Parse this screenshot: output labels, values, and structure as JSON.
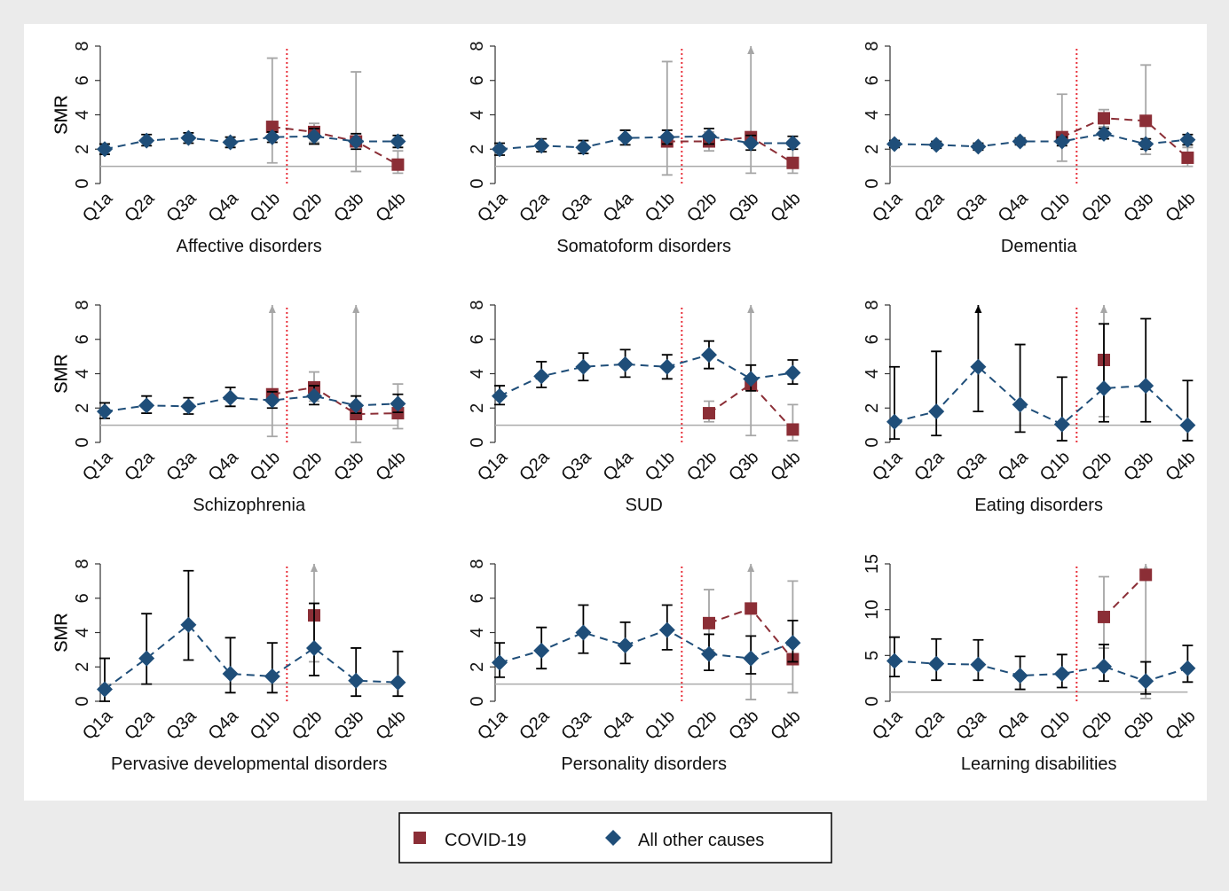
{
  "chart_data": [
    {
      "type": "line",
      "title": "Affective disorders",
      "ylabel": "SMR",
      "categories": [
        "Q1a",
        "Q2a",
        "Q3a",
        "Q4a",
        "Q1b",
        "Q2b",
        "Q3b",
        "Q4b"
      ],
      "ylim": [
        0,
        8
      ],
      "yticks": [
        0,
        2,
        4,
        6,
        8
      ],
      "reference_line": 1,
      "series": [
        {
          "name": "COVID-19",
          "color": "#8b2e36",
          "marker": "square",
          "error_color": "#a6a6a6",
          "values": [
            null,
            null,
            null,
            null,
            3.3,
            3.0,
            2.45,
            1.1
          ],
          "lower": [
            null,
            null,
            null,
            null,
            1.2,
            2.4,
            0.7,
            0.6
          ],
          "upper": [
            null,
            null,
            null,
            null,
            7.3,
            3.5,
            6.5,
            1.9
          ]
        },
        {
          "name": "All other causes",
          "color": "#1f4e79",
          "marker": "diamond",
          "error_color": "#000000",
          "values": [
            2.0,
            2.5,
            2.65,
            2.4,
            2.7,
            2.75,
            2.45,
            2.45
          ],
          "lower": [
            1.7,
            2.2,
            2.35,
            2.1,
            2.4,
            2.3,
            2.0,
            2.1
          ],
          "upper": [
            2.3,
            2.85,
            2.95,
            2.7,
            3.0,
            3.2,
            2.9,
            2.8
          ]
        }
      ]
    },
    {
      "type": "line",
      "title": "Somatoform disorders",
      "ylabel": "SMR",
      "categories": [
        "Q1a",
        "Q2a",
        "Q3a",
        "Q4a",
        "Q1b",
        "Q2b",
        "Q3b",
        "Q4b"
      ],
      "ylim": [
        0,
        8
      ],
      "yticks": [
        0,
        2,
        4,
        6,
        8
      ],
      "reference_line": 1,
      "series": [
        {
          "name": "COVID-19",
          "color": "#8b2e36",
          "marker": "square",
          "error_color": "#a6a6a6",
          "values": [
            null,
            null,
            null,
            null,
            2.45,
            2.45,
            2.7,
            1.2
          ],
          "lower": [
            null,
            null,
            null,
            null,
            0.5,
            1.9,
            0.6,
            0.6
          ],
          "upper": [
            null,
            null,
            null,
            null,
            7.1,
            3.0,
            null,
            2.0
          ]
        },
        {
          "name": "All other causes",
          "color": "#1f4e79",
          "marker": "diamond",
          "error_color": "#000000",
          "values": [
            2.0,
            2.2,
            2.1,
            2.65,
            2.7,
            2.75,
            2.35,
            2.35
          ],
          "lower": [
            1.65,
            1.85,
            1.75,
            2.25,
            2.3,
            2.3,
            1.95,
            2.0
          ],
          "upper": [
            2.35,
            2.6,
            2.5,
            3.1,
            3.1,
            3.2,
            2.8,
            2.75
          ]
        }
      ]
    },
    {
      "type": "line",
      "title": "Dementia",
      "ylabel": "SMR",
      "categories": [
        "Q1a",
        "Q2a",
        "Q3a",
        "Q4a",
        "Q1b",
        "Q2b",
        "Q3b",
        "Q4b"
      ],
      "ylim": [
        0,
        8
      ],
      "yticks": [
        0,
        2,
        4,
        6,
        8
      ],
      "reference_line": 1,
      "series": [
        {
          "name": "COVID-19",
          "color": "#8b2e36",
          "marker": "square",
          "error_color": "#a6a6a6",
          "values": [
            null,
            null,
            null,
            null,
            2.7,
            3.8,
            3.65,
            1.5
          ],
          "lower": [
            null,
            null,
            null,
            null,
            1.3,
            3.3,
            1.7,
            1.0
          ],
          "upper": [
            null,
            null,
            null,
            null,
            5.2,
            4.3,
            6.9,
            2.1
          ]
        },
        {
          "name": "All other causes",
          "color": "#1f4e79",
          "marker": "diamond",
          "error_color": "#000000",
          "values": [
            2.3,
            2.25,
            2.15,
            2.45,
            2.45,
            2.9,
            2.3,
            2.55
          ],
          "lower": [
            2.1,
            2.05,
            1.95,
            2.25,
            2.2,
            2.6,
            2.0,
            2.25
          ],
          "upper": [
            2.5,
            2.45,
            2.35,
            2.65,
            2.7,
            3.2,
            2.6,
            2.85
          ]
        }
      ]
    },
    {
      "type": "line",
      "title": "Schizophrenia",
      "ylabel": "SMR",
      "categories": [
        "Q1a",
        "Q2a",
        "Q3a",
        "Q4a",
        "Q1b",
        "Q2b",
        "Q3b",
        "Q4b"
      ],
      "ylim": [
        0,
        8
      ],
      "yticks": [
        0,
        2,
        4,
        6,
        8
      ],
      "reference_line": 1,
      "series": [
        {
          "name": "COVID-19",
          "color": "#8b2e36",
          "marker": "square",
          "error_color": "#a6a6a6",
          "values": [
            null,
            null,
            null,
            null,
            2.8,
            3.2,
            1.65,
            1.7
          ],
          "lower": [
            null,
            null,
            null,
            null,
            0.35,
            2.4,
            0.0,
            0.8
          ],
          "upper": [
            null,
            null,
            null,
            null,
            null,
            4.1,
            null,
            3.4
          ]
        },
        {
          "name": "All other causes",
          "color": "#1f4e79",
          "marker": "diamond",
          "error_color": "#000000",
          "values": [
            1.8,
            2.15,
            2.1,
            2.6,
            2.45,
            2.7,
            2.15,
            2.25
          ],
          "lower": [
            1.4,
            1.7,
            1.65,
            2.1,
            2.0,
            2.2,
            1.7,
            1.75
          ],
          "upper": [
            2.3,
            2.7,
            2.6,
            3.2,
            2.95,
            3.3,
            2.7,
            2.8
          ]
        }
      ]
    },
    {
      "type": "line",
      "title": "SUD",
      "ylabel": "SMR",
      "categories": [
        "Q1a",
        "Q2a",
        "Q3a",
        "Q4a",
        "Q1b",
        "Q2b",
        "Q3b",
        "Q4b"
      ],
      "ylim": [
        0,
        8
      ],
      "yticks": [
        0,
        2,
        4,
        6,
        8
      ],
      "reference_line": 1,
      "series": [
        {
          "name": "COVID-19",
          "color": "#8b2e36",
          "marker": "square",
          "error_color": "#a6a6a6",
          "values": [
            null,
            null,
            null,
            null,
            null,
            1.7,
            3.4,
            0.75
          ],
          "lower": [
            null,
            null,
            null,
            null,
            null,
            1.2,
            0.4,
            0.1
          ],
          "upper": [
            null,
            null,
            null,
            null,
            null,
            2.4,
            null,
            2.2
          ]
        },
        {
          "name": "All other causes",
          "color": "#1f4e79",
          "marker": "diamond",
          "error_color": "#000000",
          "values": [
            2.7,
            3.85,
            4.4,
            4.55,
            4.4,
            5.1,
            3.7,
            4.05
          ],
          "lower": [
            2.2,
            3.2,
            3.6,
            3.8,
            3.7,
            4.3,
            3.0,
            3.4
          ],
          "upper": [
            3.3,
            4.7,
            5.2,
            5.4,
            5.1,
            5.9,
            4.5,
            4.8
          ]
        }
      ]
    },
    {
      "type": "line",
      "title": "Eating disorders",
      "ylabel": "SMR",
      "categories": [
        "Q1a",
        "Q2a",
        "Q3a",
        "Q4a",
        "Q1b",
        "Q2b",
        "Q3b",
        "Q4b"
      ],
      "ylim": [
        0,
        8
      ],
      "yticks": [
        0,
        2,
        4,
        6,
        8
      ],
      "reference_line": 1,
      "series": [
        {
          "name": "COVID-19",
          "color": "#8b2e36",
          "marker": "square",
          "error_color": "#a6a6a6",
          "values": [
            null,
            null,
            null,
            null,
            null,
            4.8,
            null,
            null
          ],
          "lower": [
            null,
            null,
            null,
            null,
            null,
            1.5,
            null,
            null
          ],
          "upper": [
            null,
            null,
            null,
            null,
            null,
            null,
            null,
            null
          ]
        },
        {
          "name": "All other causes",
          "color": "#1f4e79",
          "marker": "diamond",
          "error_color": "#000000",
          "values": [
            1.2,
            1.8,
            4.4,
            2.2,
            1.05,
            3.15,
            3.3,
            1.0
          ],
          "lower": [
            0.2,
            0.4,
            1.8,
            0.6,
            0.1,
            1.2,
            1.2,
            0.1
          ],
          "upper": [
            4.4,
            5.3,
            null,
            5.7,
            3.8,
            6.9,
            7.2,
            3.6
          ]
        }
      ]
    },
    {
      "type": "line",
      "title": "Pervasive developmental disorders",
      "ylabel": "SMR",
      "categories": [
        "Q1a",
        "Q2a",
        "Q3a",
        "Q4a",
        "Q1b",
        "Q2b",
        "Q3b",
        "Q4b"
      ],
      "ylim": [
        0,
        8
      ],
      "yticks": [
        0,
        2,
        4,
        6,
        8
      ],
      "reference_line": 1,
      "series": [
        {
          "name": "COVID-19",
          "color": "#8b2e36",
          "marker": "square",
          "error_color": "#a6a6a6",
          "values": [
            null,
            null,
            null,
            null,
            null,
            5.0,
            null,
            null
          ],
          "lower": [
            null,
            null,
            null,
            null,
            null,
            2.3,
            null,
            null
          ],
          "upper": [
            null,
            null,
            null,
            null,
            null,
            null,
            null,
            null
          ]
        },
        {
          "name": "All other causes",
          "color": "#1f4e79",
          "marker": "diamond",
          "error_color": "#000000",
          "values": [
            0.7,
            2.5,
            4.45,
            1.6,
            1.45,
            3.1,
            1.2,
            1.1
          ],
          "lower": [
            0.0,
            1.0,
            2.4,
            0.5,
            0.5,
            1.5,
            0.3,
            0.3
          ],
          "upper": [
            2.5,
            5.1,
            7.6,
            3.7,
            3.4,
            5.7,
            3.1,
            2.9
          ]
        }
      ]
    },
    {
      "type": "line",
      "title": "Personality disorders",
      "ylabel": "SMR",
      "categories": [
        "Q1a",
        "Q2a",
        "Q3a",
        "Q4a",
        "Q1b",
        "Q2b",
        "Q3b",
        "Q4b"
      ],
      "ylim": [
        0,
        8
      ],
      "yticks": [
        0,
        2,
        4,
        6,
        8
      ],
      "reference_line": 1,
      "series": [
        {
          "name": "COVID-19",
          "color": "#8b2e36",
          "marker": "square",
          "error_color": "#a6a6a6",
          "values": [
            null,
            null,
            null,
            null,
            null,
            4.55,
            5.4,
            2.45
          ],
          "lower": [
            null,
            null,
            null,
            null,
            null,
            3.0,
            0.1,
            0.5
          ],
          "upper": [
            null,
            null,
            null,
            null,
            null,
            6.5,
            null,
            7.0
          ]
        },
        {
          "name": "All other causes",
          "color": "#1f4e79",
          "marker": "diamond",
          "error_color": "#000000",
          "values": [
            2.25,
            2.95,
            4.0,
            3.25,
            4.15,
            2.75,
            2.5,
            3.4
          ],
          "lower": [
            1.4,
            1.9,
            2.8,
            2.2,
            3.0,
            1.8,
            1.6,
            2.3
          ],
          "upper": [
            3.4,
            4.3,
            5.6,
            4.6,
            5.6,
            3.9,
            3.8,
            4.7
          ]
        }
      ]
    },
    {
      "type": "line",
      "title": "Learning disabilities",
      "ylabel": "SMR",
      "categories": [
        "Q1a",
        "Q2a",
        "Q3a",
        "Q4a",
        "Q1b",
        "Q2b",
        "Q3b",
        "Q4b"
      ],
      "ylim": [
        0,
        15
      ],
      "yticks": [
        0,
        5,
        10,
        15
      ],
      "reference_line": 1,
      "series": [
        {
          "name": "COVID-19",
          "color": "#8b2e36",
          "marker": "square",
          "error_color": "#a6a6a6",
          "values": [
            null,
            null,
            null,
            null,
            null,
            9.2,
            13.8,
            null
          ],
          "lower": [
            null,
            null,
            null,
            null,
            null,
            5.8,
            0.3,
            null
          ],
          "upper": [
            null,
            null,
            null,
            null,
            null,
            13.6,
            null,
            null
          ]
        },
        {
          "name": "All other causes",
          "color": "#1f4e79",
          "marker": "diamond",
          "error_color": "#000000",
          "values": [
            4.4,
            4.1,
            4.0,
            2.8,
            3.0,
            3.8,
            2.2,
            3.6
          ],
          "lower": [
            2.7,
            2.3,
            2.3,
            1.3,
            1.5,
            2.2,
            0.8,
            2.1
          ],
          "upper": [
            7.0,
            6.8,
            6.7,
            4.9,
            5.1,
            6.2,
            4.3,
            6.1
          ]
        }
      ]
    }
  ]
}
